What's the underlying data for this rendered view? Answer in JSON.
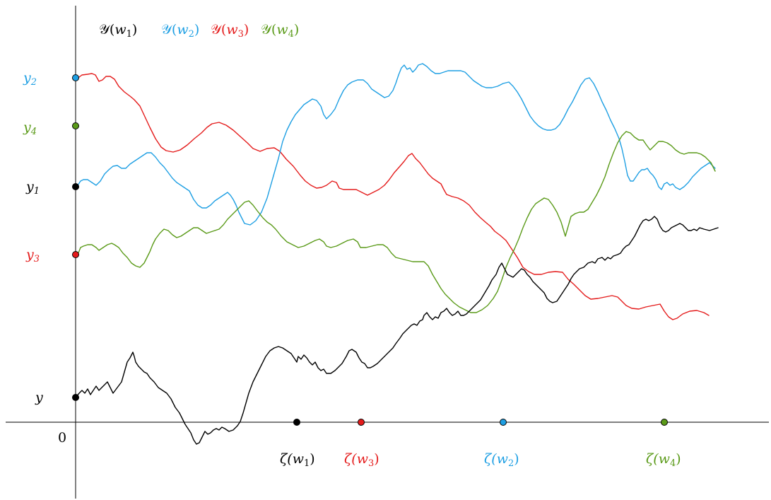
{
  "colors": {
    "w1": "#000000",
    "w2": "#1e9fe3",
    "w3": "#e41b1b",
    "w4": "#5a9a18"
  },
  "legend": [
    {
      "key": "w1",
      "prefix": "𝒴(",
      "var": "w",
      "sub": "1",
      "suffix": ")"
    },
    {
      "key": "w2",
      "prefix": "𝒴(",
      "var": "w",
      "sub": "2",
      "suffix": ")"
    },
    {
      "key": "w3",
      "prefix": "𝒴(",
      "var": "w",
      "sub": "3",
      "suffix": ")"
    },
    {
      "key": "w4",
      "prefix": "𝒴(",
      "var": "w",
      "sub": "4",
      "suffix": ")"
    }
  ],
  "y_labels": [
    {
      "key": "w2",
      "var": "y",
      "sub": "2"
    },
    {
      "key": "w4",
      "var": "y",
      "sub": "4"
    },
    {
      "key": "w1",
      "var": "y",
      "sub": "1"
    },
    {
      "key": "w3",
      "var": "y",
      "sub": "3"
    },
    {
      "key": "base",
      "var": "y",
      "sub": ""
    }
  ],
  "origin_label": "0",
  "zeta_labels": [
    {
      "key": "w1",
      "prefix": "ζ(",
      "var": "w",
      "sub": "1",
      "suffix": ")"
    },
    {
      "key": "w3",
      "prefix": "ζ(",
      "var": "w",
      "sub": "3",
      "suffix": ")"
    },
    {
      "key": "w2",
      "prefix": "ζ(",
      "var": "w",
      "sub": "2",
      "suffix": ")"
    },
    {
      "key": "w4",
      "prefix": "ζ(",
      "var": "w",
      "sub": "4",
      "suffix": ")"
    }
  ]
}
